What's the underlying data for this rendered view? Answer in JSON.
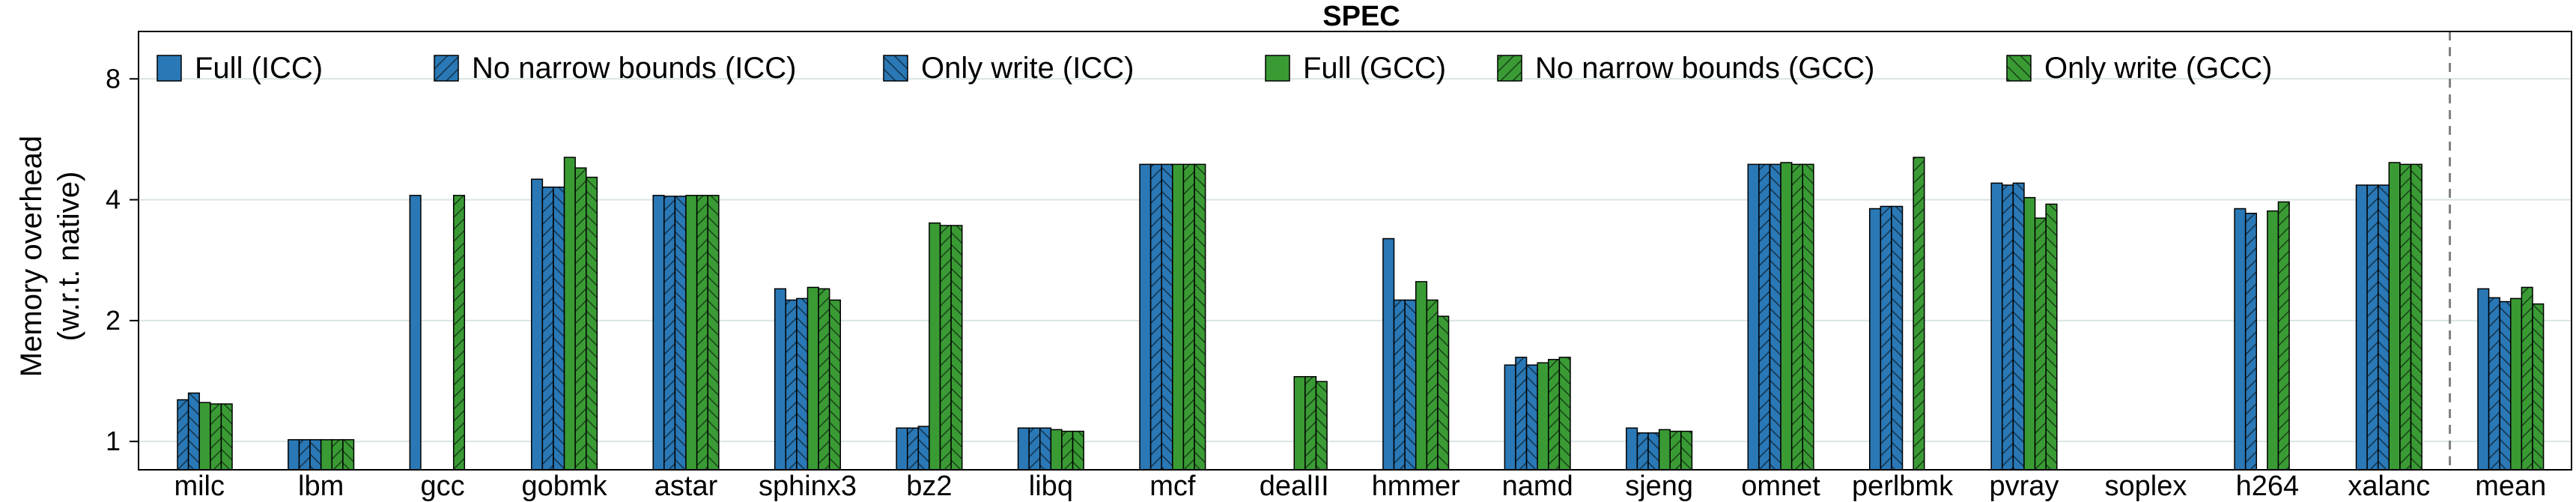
{
  "chart_data": {
    "type": "bar",
    "title": "SPEC",
    "ylabel_line1": "Memory overhead",
    "ylabel_line2": "(w.r.t. native)",
    "y_scale": "log2",
    "ylim": [
      0.85,
      10.5
    ],
    "yticks": [
      {
        "value": 1,
        "label": "1"
      },
      {
        "value": 2,
        "label": "2"
      },
      {
        "value": 4,
        "label": "4"
      },
      {
        "value": 8,
        "label": "8"
      }
    ],
    "grid": "horizontal",
    "legend": "top",
    "separator_before": "mean",
    "categories": [
      "milc",
      "lbm",
      "gcc",
      "gobmk",
      "astar",
      "sphinx3",
      "bz2",
      "libq",
      "mcf",
      "dealII",
      "hmmer",
      "namd",
      "sjeng",
      "omnet",
      "perlbmk",
      "pvray",
      "soplex",
      "h264",
      "xalanc",
      "mean"
    ],
    "series": [
      {
        "name": "Full (ICC)",
        "color": "#2a78b5",
        "hatch": "none",
        "values": [
          null,
          1.01,
          4.1,
          4.5,
          4.1,
          2.4,
          1.08,
          1.08,
          4.9,
          null,
          3.2,
          1.55,
          1.08,
          4.9,
          3.8,
          4.4,
          null,
          3.8,
          4.35,
          2.4
        ]
      },
      {
        "name": "No narrow bounds (ICC)",
        "color": "#2a78b5",
        "hatch": "forward",
        "values": [
          1.27,
          1.01,
          null,
          4.3,
          4.08,
          2.25,
          1.08,
          1.08,
          4.9,
          null,
          2.25,
          1.62,
          1.05,
          4.9,
          3.85,
          4.35,
          null,
          3.7,
          4.35,
          2.28
        ]
      },
      {
        "name": "Only write (ICC)",
        "color": "#2a78b5",
        "hatch": "backward",
        "values": [
          1.32,
          1.01,
          null,
          4.3,
          4.08,
          2.27,
          1.09,
          1.08,
          4.9,
          null,
          2.25,
          1.55,
          1.05,
          4.9,
          3.85,
          4.4,
          null,
          null,
          4.35,
          2.23
        ]
      },
      {
        "name": "Full (GCC)",
        "color": "#3a9b35",
        "hatch": "none",
        "values": [
          1.25,
          1.01,
          null,
          5.1,
          4.1,
          2.42,
          3.5,
          1.07,
          4.9,
          1.45,
          2.5,
          1.57,
          1.07,
          4.95,
          null,
          4.05,
          null,
          3.75,
          4.95,
          2.27
        ]
      },
      {
        "name": "No narrow bounds (GCC)",
        "color": "#3a9b35",
        "hatch": "forward",
        "values": [
          1.24,
          1.01,
          4.1,
          4.8,
          4.1,
          2.4,
          3.45,
          1.06,
          4.9,
          1.45,
          2.25,
          1.6,
          1.06,
          4.9,
          5.1,
          3.6,
          null,
          3.95,
          4.9,
          2.42
        ]
      },
      {
        "name": "Only write (GCC)",
        "color": "#3a9b35",
        "hatch": "backward",
        "values": [
          1.24,
          1.01,
          null,
          4.55,
          4.1,
          2.25,
          3.45,
          1.06,
          4.9,
          1.41,
          2.05,
          1.62,
          1.06,
          4.9,
          null,
          3.9,
          null,
          null,
          4.9,
          2.2
        ]
      }
    ]
  }
}
